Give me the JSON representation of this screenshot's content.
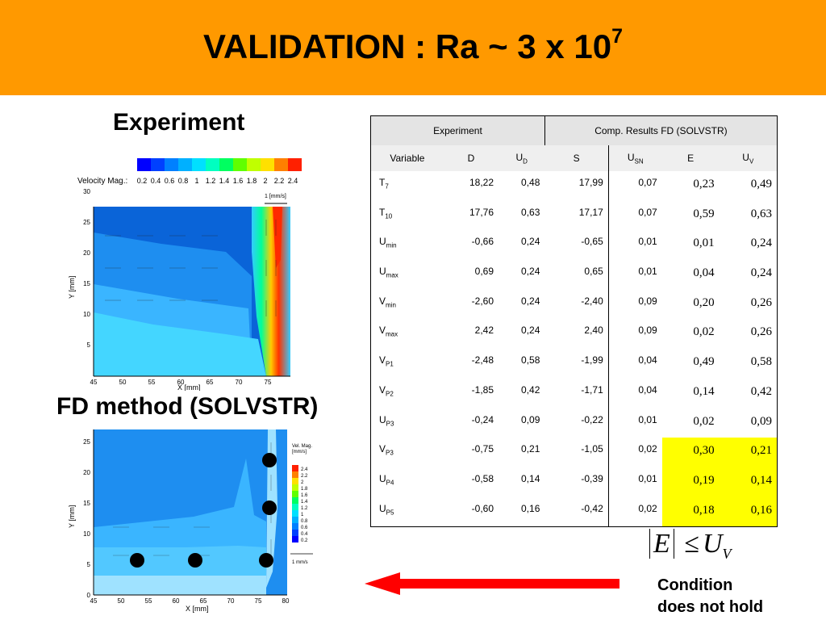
{
  "slide": {
    "title": "VALIDATION : Ra ~ 3 x 10",
    "title_exp": "7",
    "experiment_label": "Experiment",
    "fd_label": "FD method (SOLVSTR)",
    "condition_note_line1": "Condition",
    "condition_note_line2": "does not hold",
    "formula": {
      "lhs": "E",
      "op": "≤",
      "rhs": "U",
      "rhs_sub": "V"
    },
    "colors": {
      "header": "#ff9900",
      "highlight": "#ffff00",
      "arrow": "#ff0000"
    }
  },
  "fig_top": {
    "legend_title": "Velocity Mag.:",
    "legend_ticks": [
      "0.2",
      "0.4",
      "0.6",
      "0.8",
      "1",
      "1.2",
      "1.4",
      "1.6",
      "1.8",
      "2",
      "2.2",
      "2.4"
    ],
    "scale_label": "1 [mm/s]",
    "xlabel": "X [mm]",
    "ylabel": "Y [mm]",
    "xticks": [
      "45",
      "50",
      "55",
      "60",
      "65",
      "70",
      "75"
    ],
    "yticks": [
      "5",
      "10",
      "15",
      "20",
      "25",
      "30"
    ]
  },
  "fig_bottom": {
    "legend_title": "Vel. Mag.",
    "legend_unit": "[mm/s]",
    "legend_ticks": [
      "2.4",
      "2.2",
      "2",
      "1.8",
      "1.6",
      "1.4",
      "1.2",
      "1",
      "0.8",
      "0.6",
      "0.4",
      "0.2"
    ],
    "scale_label": "1 mm/s",
    "xlabel": "X [mm]",
    "ylabel": "Y [mm]",
    "xticks": [
      "45",
      "50",
      "55",
      "60",
      "65",
      "70",
      "75",
      "80"
    ],
    "yticks": [
      "0",
      "5",
      "10",
      "15",
      "20",
      "25"
    ]
  },
  "table": {
    "group_experiment": "Experiment",
    "group_comp": "Comp. Results FD (SOLVSTR)",
    "headers": [
      {
        "main": "Variable",
        "sub": ""
      },
      {
        "main": "D",
        "sub": ""
      },
      {
        "main": "U",
        "sub": "D"
      },
      {
        "main": "S",
        "sub": ""
      },
      {
        "main": "U",
        "sub": "SN"
      },
      {
        "main": "E",
        "sub": ""
      },
      {
        "main": "U",
        "sub": "V"
      }
    ],
    "rows": [
      {
        "v": "T",
        "s": "7",
        "D": "18,22",
        "UD": "0,48",
        "S": "17,99",
        "USN": "0,07",
        "E": "0,23",
        "UV": "0,49",
        "hl": false
      },
      {
        "v": "T",
        "s": "10",
        "D": "17,76",
        "UD": "0,63",
        "S": "17,17",
        "USN": "0,07",
        "E": "0,59",
        "UV": "0,63",
        "hl": false
      },
      {
        "v": "U",
        "s": "min",
        "D": "-0,66",
        "UD": "0,24",
        "S": "-0,65",
        "USN": "0,01",
        "E": "0,01",
        "UV": "0,24",
        "hl": false
      },
      {
        "v": "U",
        "s": "max",
        "D": "0,69",
        "UD": "0,24",
        "S": "0,65",
        "USN": "0,01",
        "E": "0,04",
        "UV": "0,24",
        "hl": false
      },
      {
        "v": "V",
        "s": "min",
        "D": "-2,60",
        "UD": "0,24",
        "S": "-2,40",
        "USN": "0,09",
        "E": "0,20",
        "UV": "0,26",
        "hl": false
      },
      {
        "v": "V",
        "s": "max",
        "D": "2,42",
        "UD": "0,24",
        "S": "2,40",
        "USN": "0,09",
        "E": "0,02",
        "UV": "0,26",
        "hl": false
      },
      {
        "v": "V",
        "s": "P1",
        "D": "-2,48",
        "UD": "0,58",
        "S": "-1,99",
        "USN": "0,04",
        "E": "0,49",
        "UV": "0,58",
        "hl": false
      },
      {
        "v": "V",
        "s": "P2",
        "D": "-1,85",
        "UD": "0,42",
        "S": "-1,71",
        "USN": "0,04",
        "E": "0,14",
        "UV": "0,42",
        "hl": false
      },
      {
        "v": "U",
        "s": "P3",
        "D": "-0,24",
        "UD": "0,09",
        "S": "-0,22",
        "USN": "0,01",
        "E": "0,02",
        "UV": "0,09",
        "hl": false
      },
      {
        "v": "V",
        "s": "P3",
        "D": "-0,75",
        "UD": "0,21",
        "S": "-1,05",
        "USN": "0,02",
        "E": "0,30",
        "UV": "0,21",
        "hl": true
      },
      {
        "v": "U",
        "s": "P4",
        "D": "-0,58",
        "UD": "0,14",
        "S": "-0,39",
        "USN": "0,01",
        "E": "0,19",
        "UV": "0,14",
        "hl": true
      },
      {
        "v": "U",
        "s": "P5",
        "D": "-0,60",
        "UD": "0,16",
        "S": "-0,42",
        "USN": "0,02",
        "E": "0,18",
        "UV": "0,16",
        "hl": true
      }
    ]
  }
}
